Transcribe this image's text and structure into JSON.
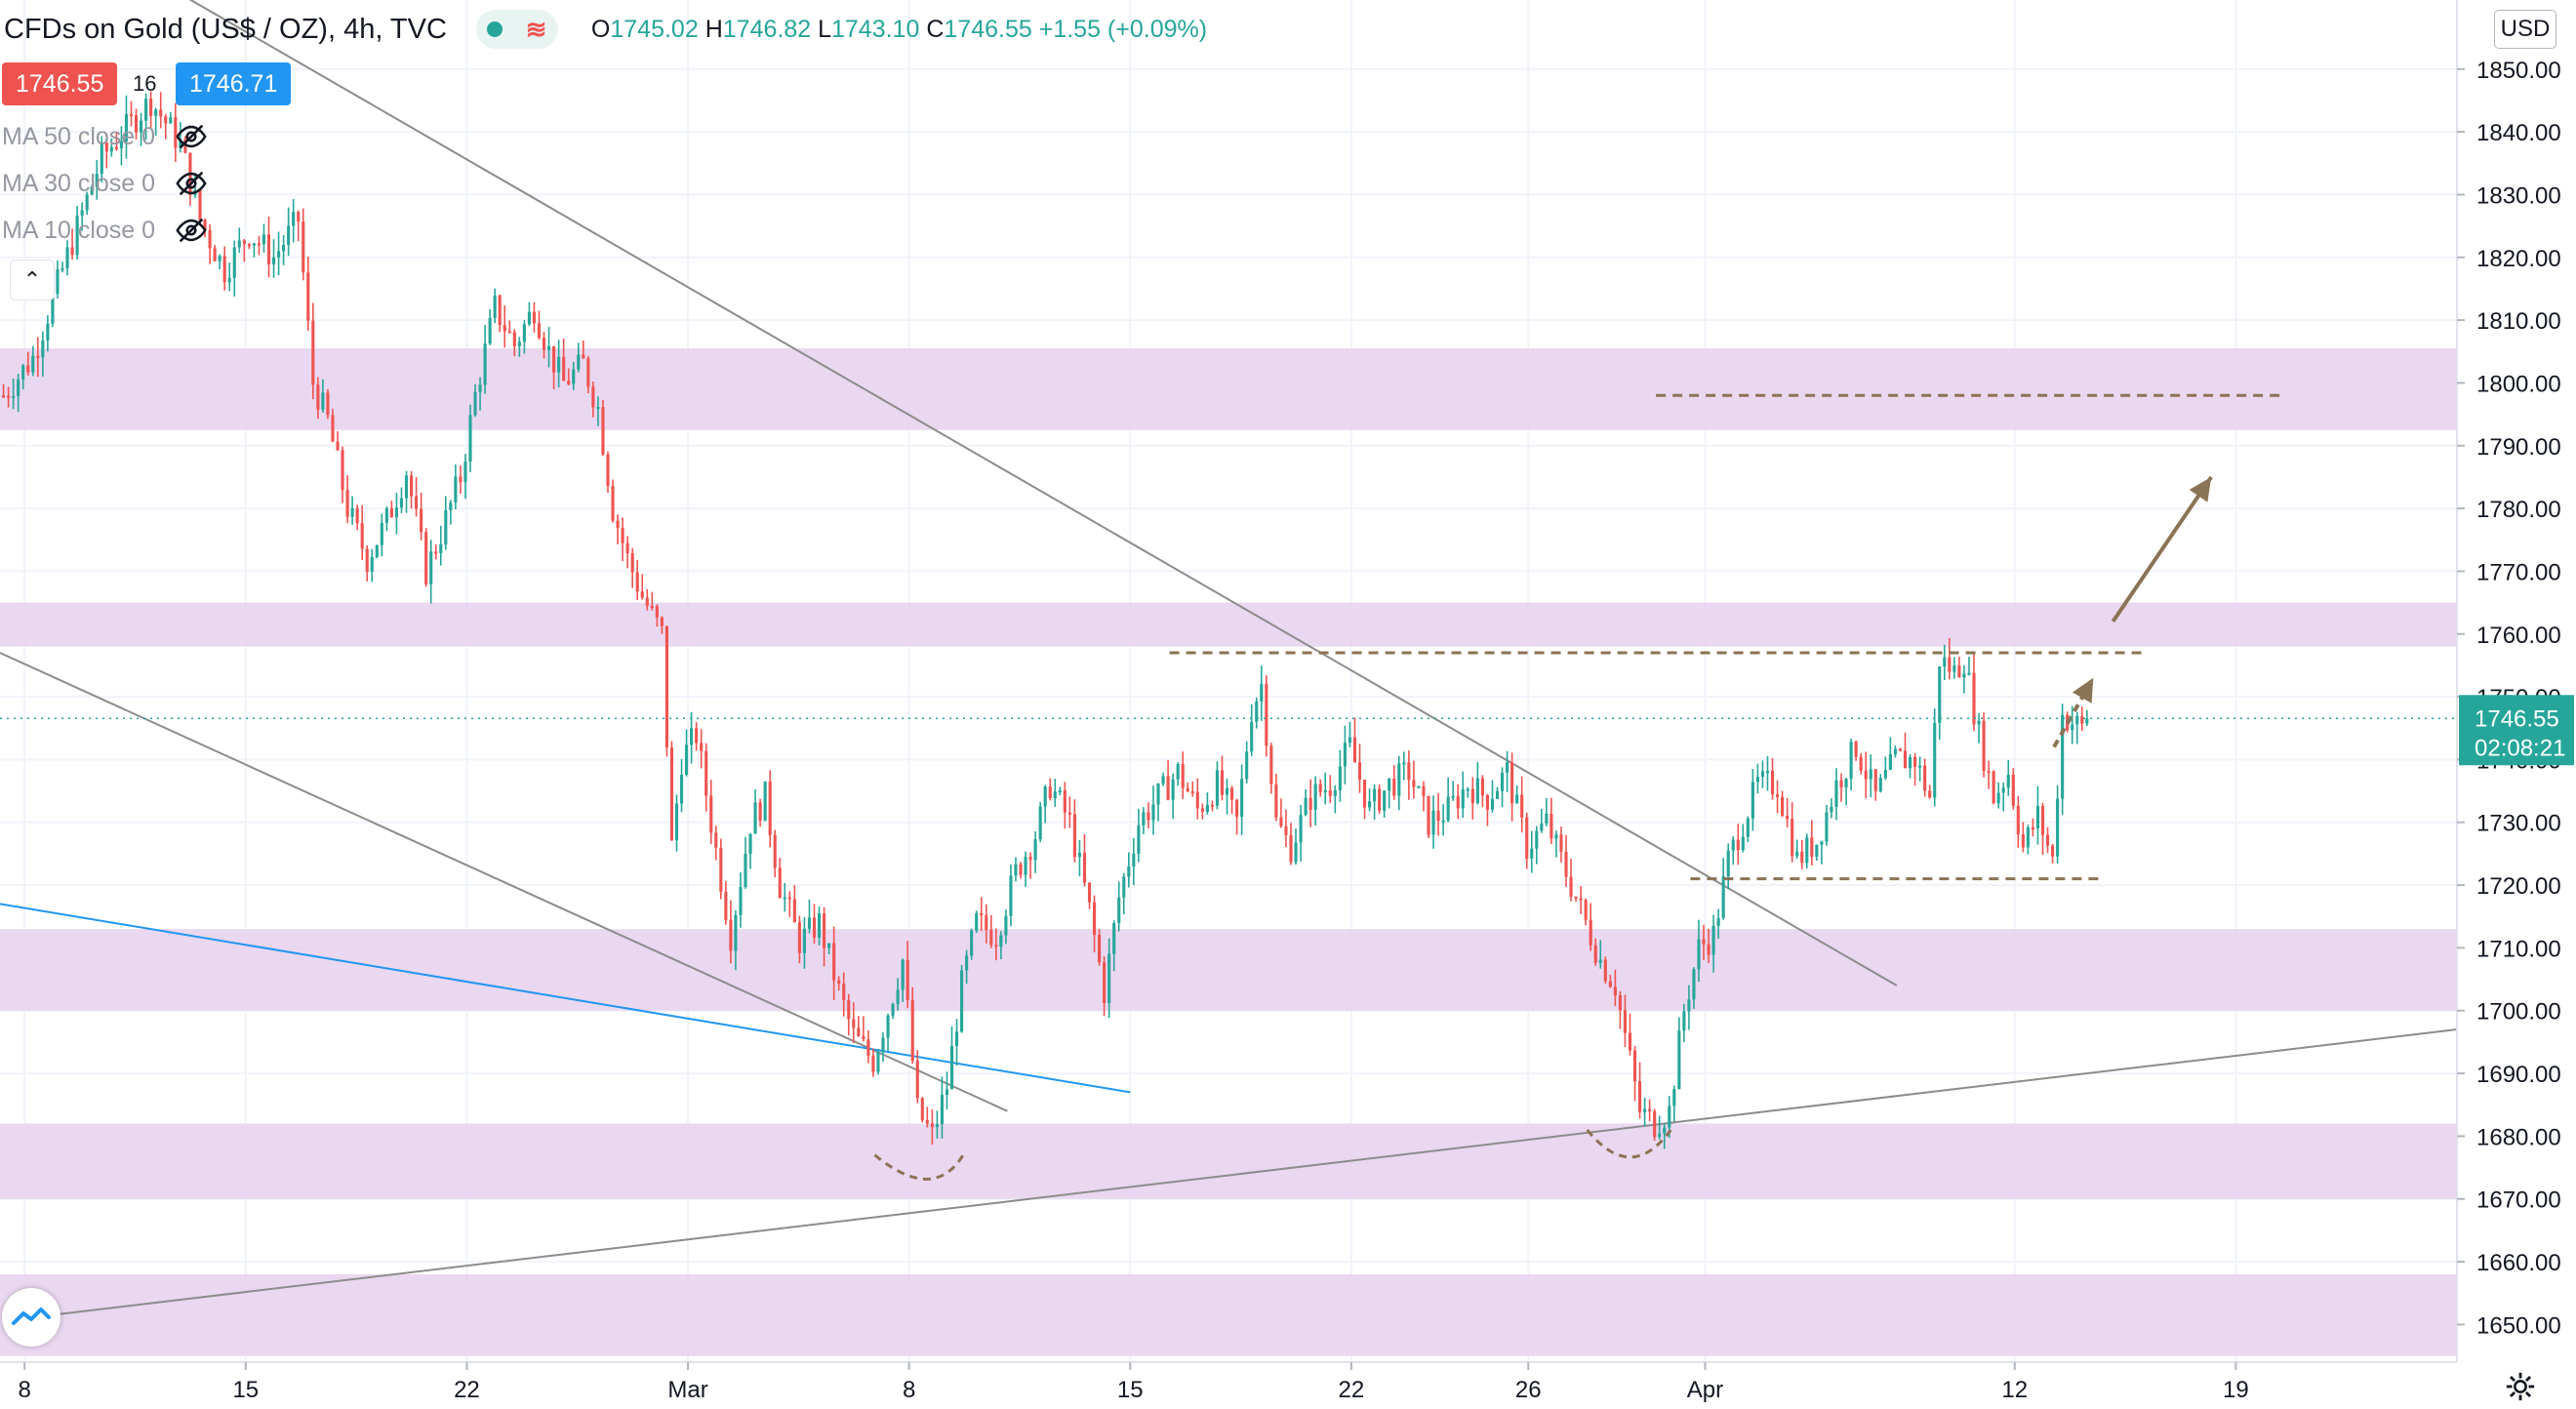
{
  "header": {
    "title": "CFDs on Gold (US$ / OZ), 4h, TVC",
    "ohlc": {
      "o_label": "O",
      "o": "1745.02",
      "h_label": "H",
      "h": "1746.82",
      "l_label": "L",
      "l": "1743.10",
      "c_label": "C",
      "c": "1746.55",
      "change": "+1.55 (+0.09%)"
    }
  },
  "trade": {
    "sell": "1746.55",
    "qty": "16",
    "buy": "1746.71"
  },
  "indicators": [
    {
      "label": "MA 50 close 0"
    },
    {
      "label": "MA 30 close 0"
    },
    {
      "label": "MA 10 close 0"
    }
  ],
  "currency": "USD",
  "colors": {
    "up": "#26a69a",
    "down": "#ef5350",
    "zone": "#e8d3ee",
    "blue_line": "#2196f3",
    "trend": "#8c8c8c",
    "annotation": "#8b7355",
    "sell": "#ef5350",
    "buy": "#2196f3"
  },
  "chart_data": {
    "type": "candlestick",
    "title": "CFDs on Gold (US$ / OZ)",
    "interval": "4h",
    "source": "TVC",
    "y_range": [
      1644,
      1861
    ],
    "y_ticks": [
      "1850.00",
      "1840.00",
      "1830.00",
      "1820.00",
      "1810.00",
      "1800.00",
      "1790.00",
      "1780.00",
      "1770.00",
      "1760.00",
      "1750.00",
      "1740.00",
      "1730.00",
      "1720.00",
      "1710.00",
      "1700.00",
      "1690.00",
      "1680.00",
      "1670.00",
      "1660.00",
      "1650.00"
    ],
    "x_labels": [
      {
        "label": "8",
        "bar": 5
      },
      {
        "label": "15",
        "bar": 50
      },
      {
        "label": "22",
        "bar": 95
      },
      {
        "label": "Mar",
        "bar": 140
      },
      {
        "label": "8",
        "bar": 185
      },
      {
        "label": "15",
        "bar": 230
      },
      {
        "label": "22",
        "bar": 275
      },
      {
        "label": "26",
        "bar": 311
      },
      {
        "label": "Apr",
        "bar": 347
      },
      {
        "label": "12",
        "bar": 410
      },
      {
        "label": "19",
        "bar": 455
      }
    ],
    "x_range": [
      0,
      500
    ],
    "last_price": {
      "value": 1746.55,
      "label": "1746.55",
      "countdown": "02:08:21"
    },
    "close_path": [
      [
        0,
        1798
      ],
      [
        6,
        1804
      ],
      [
        12,
        1818
      ],
      [
        20,
        1836
      ],
      [
        30,
        1845
      ],
      [
        36,
        1838
      ],
      [
        40,
        1826
      ],
      [
        45,
        1818
      ],
      [
        50,
        1824
      ],
      [
        55,
        1820
      ],
      [
        60,
        1826
      ],
      [
        63,
        1800
      ],
      [
        66,
        1794
      ],
      [
        70,
        1780
      ],
      [
        74,
        1772
      ],
      [
        78,
        1778
      ],
      [
        82,
        1786
      ],
      [
        86,
        1770
      ],
      [
        89,
        1776
      ],
      [
        93,
        1785
      ],
      [
        96,
        1798
      ],
      [
        100,
        1812
      ],
      [
        104,
        1806
      ],
      [
        108,
        1812
      ],
      [
        111,
        1805
      ],
      [
        114,
        1800
      ],
      [
        118,
        1803
      ],
      [
        121,
        1796
      ],
      [
        124,
        1780
      ],
      [
        127,
        1772
      ],
      [
        130,
        1766
      ],
      [
        134,
        1760
      ],
      [
        136,
        1726
      ],
      [
        138,
        1740
      ],
      [
        141,
        1744
      ],
      [
        144,
        1730
      ],
      [
        148,
        1712
      ],
      [
        152,
        1730
      ],
      [
        155,
        1734
      ],
      [
        158,
        1720
      ],
      [
        162,
        1711
      ],
      [
        166,
        1714
      ],
      [
        170,
        1703
      ],
      [
        173,
        1696
      ],
      [
        177,
        1692
      ],
      [
        180,
        1700
      ],
      [
        183,
        1708
      ],
      [
        186,
        1684
      ],
      [
        189,
        1680
      ],
      [
        192,
        1688
      ],
      [
        195,
        1704
      ],
      [
        198,
        1714
      ],
      [
        202,
        1712
      ],
      [
        206,
        1722
      ],
      [
        210,
        1728
      ],
      [
        213,
        1736
      ],
      [
        217,
        1730
      ],
      [
        221,
        1716
      ],
      [
        224,
        1703
      ],
      [
        227,
        1718
      ],
      [
        231,
        1730
      ],
      [
        235,
        1734
      ],
      [
        239,
        1738
      ],
      [
        243,
        1732
      ],
      [
        247,
        1736
      ],
      [
        251,
        1730
      ],
      [
        254,
        1748
      ],
      [
        256,
        1752
      ],
      [
        259,
        1730
      ],
      [
        262,
        1726
      ],
      [
        266,
        1734
      ],
      [
        270,
        1736
      ],
      [
        274,
        1742
      ],
      [
        278,
        1732
      ],
      [
        282,
        1736
      ],
      [
        286,
        1738
      ],
      [
        290,
        1730
      ],
      [
        294,
        1732
      ],
      [
        298,
        1736
      ],
      [
        302,
        1734
      ],
      [
        306,
        1738
      ],
      [
        310,
        1726
      ],
      [
        314,
        1730
      ],
      [
        318,
        1722
      ],
      [
        322,
        1714
      ],
      [
        325,
        1708
      ],
      [
        328,
        1704
      ],
      [
        331,
        1692
      ],
      [
        333,
        1684
      ],
      [
        336,
        1682
      ],
      [
        339,
        1684
      ],
      [
        342,
        1700
      ],
      [
        345,
        1710
      ],
      [
        348,
        1712
      ],
      [
        351,
        1724
      ],
      [
        354,
        1730
      ],
      [
        357,
        1736
      ],
      [
        361,
        1736
      ],
      [
        365,
        1724
      ],
      [
        369,
        1727
      ],
      [
        373,
        1736
      ],
      [
        377,
        1742
      ],
      [
        381,
        1734
      ],
      [
        385,
        1740
      ],
      [
        389,
        1740
      ],
      [
        392,
        1734
      ],
      [
        394,
        1756
      ],
      [
        397,
        1754
      ],
      [
        399,
        1756
      ],
      [
        402,
        1744
      ],
      [
        405,
        1734
      ],
      [
        408,
        1738
      ],
      [
        411,
        1726
      ],
      [
        414,
        1731
      ],
      [
        417,
        1724
      ],
      [
        419,
        1747
      ],
      [
        421,
        1746
      ],
      [
        423,
        1745.02
      ],
      [
        424,
        1746.55
      ]
    ],
    "zones": [
      [
        1792.5,
        1805.5
      ],
      [
        1758,
        1765
      ],
      [
        1700,
        1713
      ],
      [
        1670,
        1682
      ],
      [
        1645,
        1658
      ]
    ],
    "trendlines": [
      {
        "from": [
          30,
          1865
        ],
        "to": [
          386,
          1704
        ]
      },
      {
        "from": [
          0,
          1757
        ],
        "to": [
          205,
          1684
        ]
      },
      {
        "from": [
          5,
          1651
        ],
        "to": [
          500,
          1697
        ]
      }
    ],
    "blue_line": {
      "from": [
        0,
        1717
      ],
      "to": [
        230,
        1687
      ]
    },
    "annotations": {
      "resistance": {
        "from": [
          238,
          1757
        ],
        "to": [
          436,
          1757
        ]
      },
      "target": {
        "from": [
          337,
          1798
        ],
        "to": [
          464,
          1798
        ]
      },
      "support": {
        "from": [
          344,
          1721
        ],
        "to": [
          428,
          1721
        ]
      },
      "arrow_up": {
        "from": [
          430,
          1762
        ],
        "to": [
          450,
          1785
        ]
      },
      "arrow_small": {
        "from": [
          418,
          1742
        ],
        "to": [
          426,
          1753
        ]
      },
      "bottom_curves": [
        [
          [
            178,
            1677
          ],
          [
            190,
            1674
          ],
          [
            196,
            1677
          ]
        ],
        [
          [
            323,
            1681
          ],
          [
            332,
            1677
          ],
          [
            340,
            1681
          ]
        ]
      ]
    }
  }
}
